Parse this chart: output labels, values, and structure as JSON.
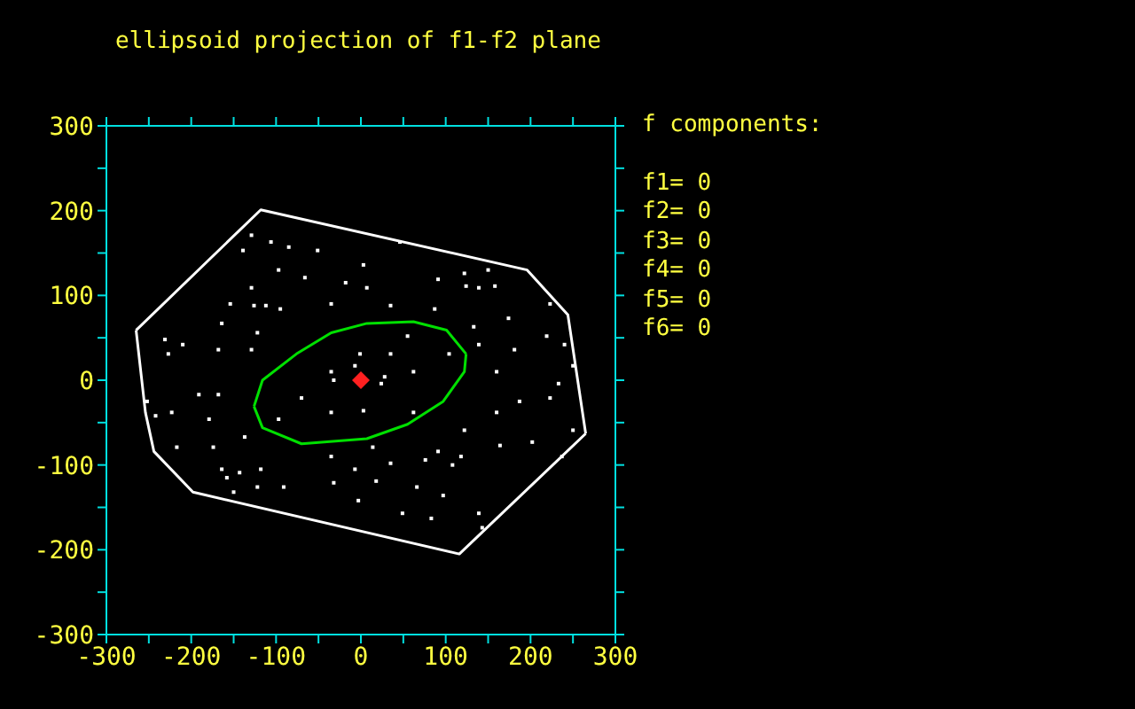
{
  "chart_data": {
    "type": "scatter",
    "title": "ellipsoid projection of f1-f2 plane",
    "annotations": [
      "f components:",
      "f1= 0",
      "f2= 0",
      "f3= 0",
      "f4= 0",
      "f5= 0",
      "f6= 0"
    ],
    "xlim": [
      -300,
      300
    ],
    "ylim": [
      -300,
      300
    ],
    "xticks": [
      -300,
      {
        "value": -250,
        "label": null
      },
      -200,
      {
        "value": -150,
        "label": null
      },
      -100,
      {
        "value": -50,
        "label": null
      },
      0,
      {
        "value": 50,
        "label": null
      },
      100,
      {
        "value": 150,
        "label": null
      },
      200,
      {
        "value": 250,
        "label": null
      },
      300
    ],
    "yticks": [
      -300,
      {
        "value": -250,
        "label": null
      },
      -200,
      {
        "value": -150,
        "label": null
      },
      -100,
      {
        "value": -50,
        "label": null
      },
      0,
      {
        "value": 50,
        "label": null
      },
      100,
      {
        "value": 150,
        "label": null
      },
      200,
      {
        "value": 250,
        "label": null
      },
      300
    ],
    "grid": false,
    "legend": false,
    "series": [
      {
        "color": "#ffffff",
        "marker": "square",
        "x": [
          -129,
          -139,
          -106,
          -85,
          -51,
          -97,
          -66,
          -18,
          -129,
          -154,
          -126,
          -112,
          -95,
          -35,
          -122,
          -164,
          -231,
          -210,
          -227,
          -168,
          -129,
          -1,
          -7,
          -35,
          3,
          46,
          91,
          122,
          124,
          150,
          158,
          139,
          7,
          35,
          87,
          133,
          174,
          223,
          219,
          240,
          250,
          181,
          139,
          160,
          104,
          55,
          35,
          62,
          28,
          -252,
          -242,
          -223,
          -191,
          -168,
          -179,
          -217,
          -174,
          -137,
          -164,
          -158,
          -143,
          -122,
          -118,
          -150,
          -91,
          -70,
          -97,
          -35,
          -32,
          3,
          -35,
          -7,
          -32,
          24,
          62,
          122,
          160,
          187,
          223,
          233,
          250,
          118,
          108,
          91,
          76,
          164,
          202,
          237,
          66,
          97,
          139,
          143,
          83,
          49,
          18,
          -3,
          14,
          35
        ],
        "values": [
          171,
          153,
          163,
          157,
          153,
          130,
          121,
          115,
          109,
          90,
          88,
          88,
          84,
          90,
          56,
          67,
          48,
          42,
          31,
          36,
          36,
          31,
          17,
          10,
          136,
          163,
          119,
          126,
          111,
          130,
          111,
          109,
          109,
          88,
          84,
          63,
          73,
          90,
          52,
          42,
          17,
          36,
          42,
          10,
          31,
          52,
          31,
          10,
          4,
          -25,
          -42,
          -38,
          -17,
          -17,
          -46,
          -79,
          -79,
          -67,
          -105,
          -115,
          -109,
          -126,
          -105,
          -132,
          -126,
          -21,
          -46,
          -38,
          0,
          -36,
          -90,
          -105,
          -121,
          -4,
          -38,
          -59,
          -38,
          -25,
          -21,
          -4,
          -59,
          -90,
          -100,
          -84,
          -94,
          -77,
          -73,
          -90,
          -126,
          -136,
          -157,
          -174,
          -163,
          -157,
          -119,
          -142,
          -79,
          -98
        ]
      },
      {
        "type": "line",
        "color": "#ffffff",
        "marker": "none",
        "line_style": "solid",
        "x": [
          -265,
          -118,
          196,
          244,
          265
        ],
        "values": [
          59,
          201,
          130,
          77,
          -63
        ]
      },
      {
        "type": "line",
        "color": "#ffffff",
        "marker": "none",
        "line_style": "solid",
        "x": [
          -265,
          -254,
          -244,
          -198,
          116,
          265
        ],
        "values": [
          59,
          -38,
          -84,
          -132,
          -205,
          -63
        ]
      },
      {
        "type": "line",
        "color": "#00e000",
        "marker": "none",
        "line_style": "solid",
        "x": [
          -126,
          -116,
          -76,
          -35,
          7,
          62,
          101,
          124
        ],
        "values": [
          -31,
          0,
          31,
          56,
          67,
          69,
          59,
          31
        ]
      },
      {
        "type": "line",
        "color": "#00e000",
        "marker": "none",
        "line_style": "solid",
        "x": [
          -126,
          -116,
          -70,
          7,
          55,
          97,
          122,
          124
        ],
        "values": [
          -31,
          -56,
          -75,
          -69,
          -52,
          -25,
          10,
          31
        ]
      },
      {
        "type": "scatter",
        "color": "#ff2020",
        "marker": "diamond",
        "x": [
          0
        ],
        "values": [
          0
        ]
      }
    ]
  }
}
